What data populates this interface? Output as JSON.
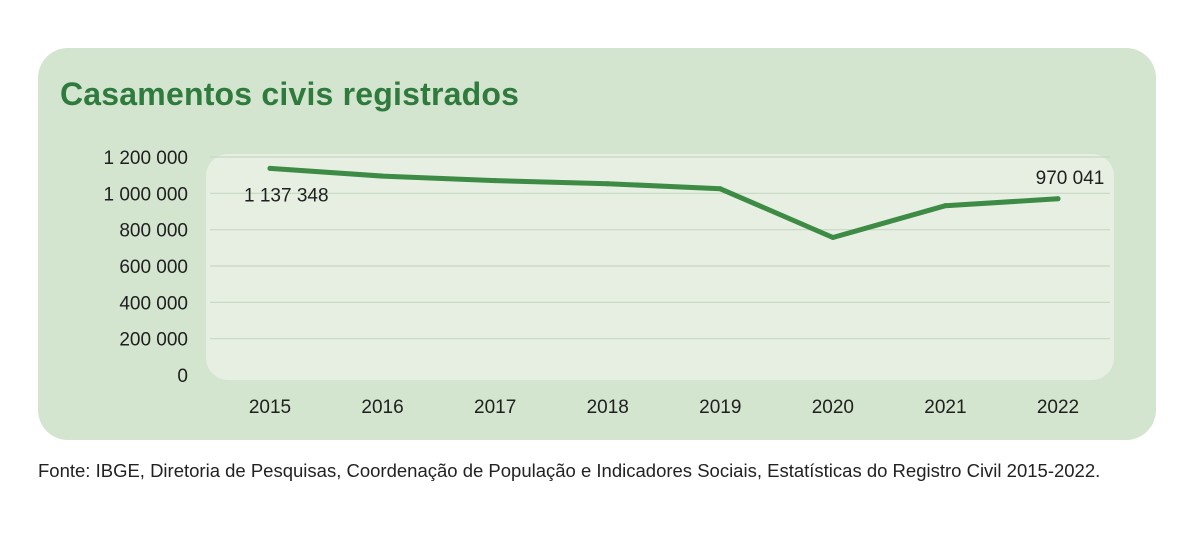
{
  "chart_data": {
    "type": "line",
    "title": "Casamentos civis registrados",
    "xlabel": "",
    "ylabel": "",
    "categories": [
      "2015",
      "2016",
      "2017",
      "2018",
      "2019",
      "2020",
      "2021",
      "2022"
    ],
    "series": [
      {
        "name": "Casamentos civis registrados",
        "values": [
          1137348,
          1095000,
          1070000,
          1053000,
          1025000,
          757000,
          932000,
          970041
        ]
      }
    ],
    "ylim": [
      0,
      1200000
    ],
    "yticks": [
      0,
      200000,
      400000,
      600000,
      800000,
      1000000,
      1200000
    ],
    "ytick_labels": [
      "0",
      "200 000",
      "400 000",
      "600 000",
      "800 000",
      "1 000 000",
      "1 200 000"
    ],
    "data_labels": [
      {
        "index": 0,
        "text": "1 137 348"
      },
      {
        "index": 7,
        "text": "970 041"
      }
    ],
    "grid": true,
    "line_color": "#3d8b45"
  },
  "source_text": "Fonte: IBGE, Diretoria de Pesquisas, Coordenação de População e Indicadores Sociais, Estatísticas do Registro Civil 2015-2022."
}
